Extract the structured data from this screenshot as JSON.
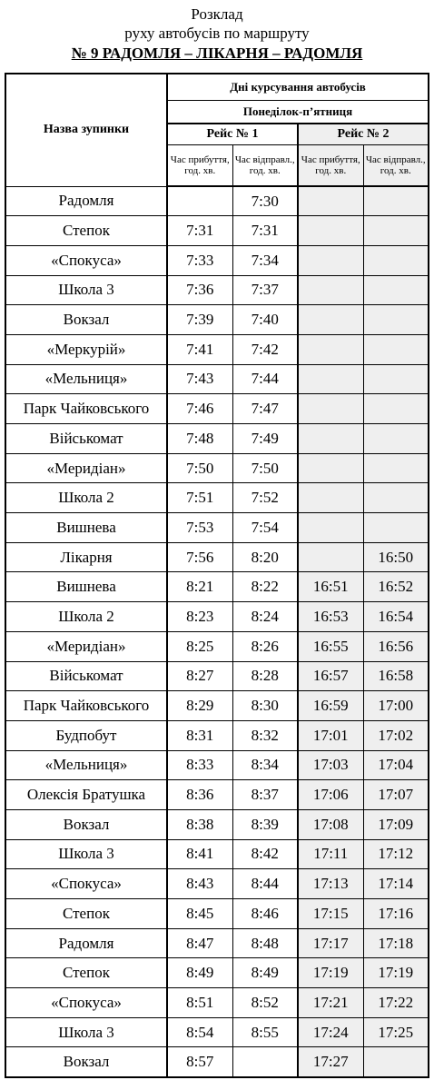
{
  "header": {
    "line1": "Розклад",
    "line2": "руху автобусів по маршруту",
    "line3": "№ 9 РАДОМЛЯ – ЛІКАРНЯ – РАДОМЛЯ"
  },
  "table": {
    "stop_header": "Назва зупинки",
    "days_header": "Дні курсування автобусів",
    "weekdays_header": "Понеділок-п’ятниця",
    "trip1_header": "Рейс № 1",
    "trip2_header": "Рейс № 2",
    "arrival_header": "Час прибуття, год. хв.",
    "departure_header": "Час відправл., год. хв.",
    "rows": [
      {
        "stop": "Радомля",
        "a1": "",
        "d1": "7:30",
        "a2": "",
        "d2": ""
      },
      {
        "stop": "Степок",
        "a1": "7:31",
        "d1": "7:31",
        "a2": "",
        "d2": ""
      },
      {
        "stop": "«Спокуса»",
        "a1": "7:33",
        "d1": "7:34",
        "a2": "",
        "d2": ""
      },
      {
        "stop": "Школа 3",
        "a1": "7:36",
        "d1": "7:37",
        "a2": "",
        "d2": ""
      },
      {
        "stop": "Вокзал",
        "a1": "7:39",
        "d1": "7:40",
        "a2": "",
        "d2": ""
      },
      {
        "stop": "«Меркурій»",
        "a1": "7:41",
        "d1": "7:42",
        "a2": "",
        "d2": ""
      },
      {
        "stop": "«Мельниця»",
        "a1": "7:43",
        "d1": "7:44",
        "a2": "",
        "d2": ""
      },
      {
        "stop": "Парк Чайковського",
        "a1": "7:46",
        "d1": "7:47",
        "a2": "",
        "d2": ""
      },
      {
        "stop": "Військомат",
        "a1": "7:48",
        "d1": "7:49",
        "a2": "",
        "d2": ""
      },
      {
        "stop": "«Меридіан»",
        "a1": "7:50",
        "d1": "7:50",
        "a2": "",
        "d2": ""
      },
      {
        "stop": "Школа 2",
        "a1": "7:51",
        "d1": "7:52",
        "a2": "",
        "d2": ""
      },
      {
        "stop": "Вишнева",
        "a1": "7:53",
        "d1": "7:54",
        "a2": "",
        "d2": ""
      },
      {
        "stop": "Лікарня",
        "a1": "7:56",
        "d1": "8:20",
        "a2": "",
        "d2": "16:50"
      },
      {
        "stop": "Вишнева",
        "a1": "8:21",
        "d1": "8:22",
        "a2": "16:51",
        "d2": "16:52"
      },
      {
        "stop": "Школа 2",
        "a1": "8:23",
        "d1": "8:24",
        "a2": "16:53",
        "d2": "16:54"
      },
      {
        "stop": "«Меридіан»",
        "a1": "8:25",
        "d1": "8:26",
        "a2": "16:55",
        "d2": "16:56"
      },
      {
        "stop": "Військомат",
        "a1": "8:27",
        "d1": "8:28",
        "a2": "16:57",
        "d2": "16:58"
      },
      {
        "stop": "Парк Чайковського",
        "a1": "8:29",
        "d1": "8:30",
        "a2": "16:59",
        "d2": "17:00"
      },
      {
        "stop": "Будпобут",
        "a1": "8:31",
        "d1": "8:32",
        "a2": "17:01",
        "d2": "17:02"
      },
      {
        "stop": "«Мельниця»",
        "a1": "8:33",
        "d1": "8:34",
        "a2": "17:03",
        "d2": "17:04"
      },
      {
        "stop": "Олексія Братушка",
        "a1": "8:36",
        "d1": "8:37",
        "a2": "17:06",
        "d2": "17:07"
      },
      {
        "stop": "Вокзал",
        "a1": "8:38",
        "d1": "8:39",
        "a2": "17:08",
        "d2": "17:09"
      },
      {
        "stop": "Школа 3",
        "a1": "8:41",
        "d1": "8:42",
        "a2": "17:11",
        "d2": "17:12"
      },
      {
        "stop": "«Спокуса»",
        "a1": "8:43",
        "d1": "8:44",
        "a2": "17:13",
        "d2": "17:14"
      },
      {
        "stop": "Степок",
        "a1": "8:45",
        "d1": "8:46",
        "a2": "17:15",
        "d2": "17:16"
      },
      {
        "stop": "Радомля",
        "a1": "8:47",
        "d1": "8:48",
        "a2": "17:17",
        "d2": "17:18"
      },
      {
        "stop": "Степок",
        "a1": "8:49",
        "d1": "8:49",
        "a2": "17:19",
        "d2": "17:19"
      },
      {
        "stop": "«Спокуса»",
        "a1": "8:51",
        "d1": "8:52",
        "a2": "17:21",
        "d2": "17:22"
      },
      {
        "stop": "Школа 3",
        "a1": "8:54",
        "d1": "8:55",
        "a2": "17:24",
        "d2": "17:25"
      },
      {
        "stop": "Вокзал",
        "a1": "8:57",
        "d1": "",
        "a2": "17:27",
        "d2": ""
      }
    ]
  }
}
